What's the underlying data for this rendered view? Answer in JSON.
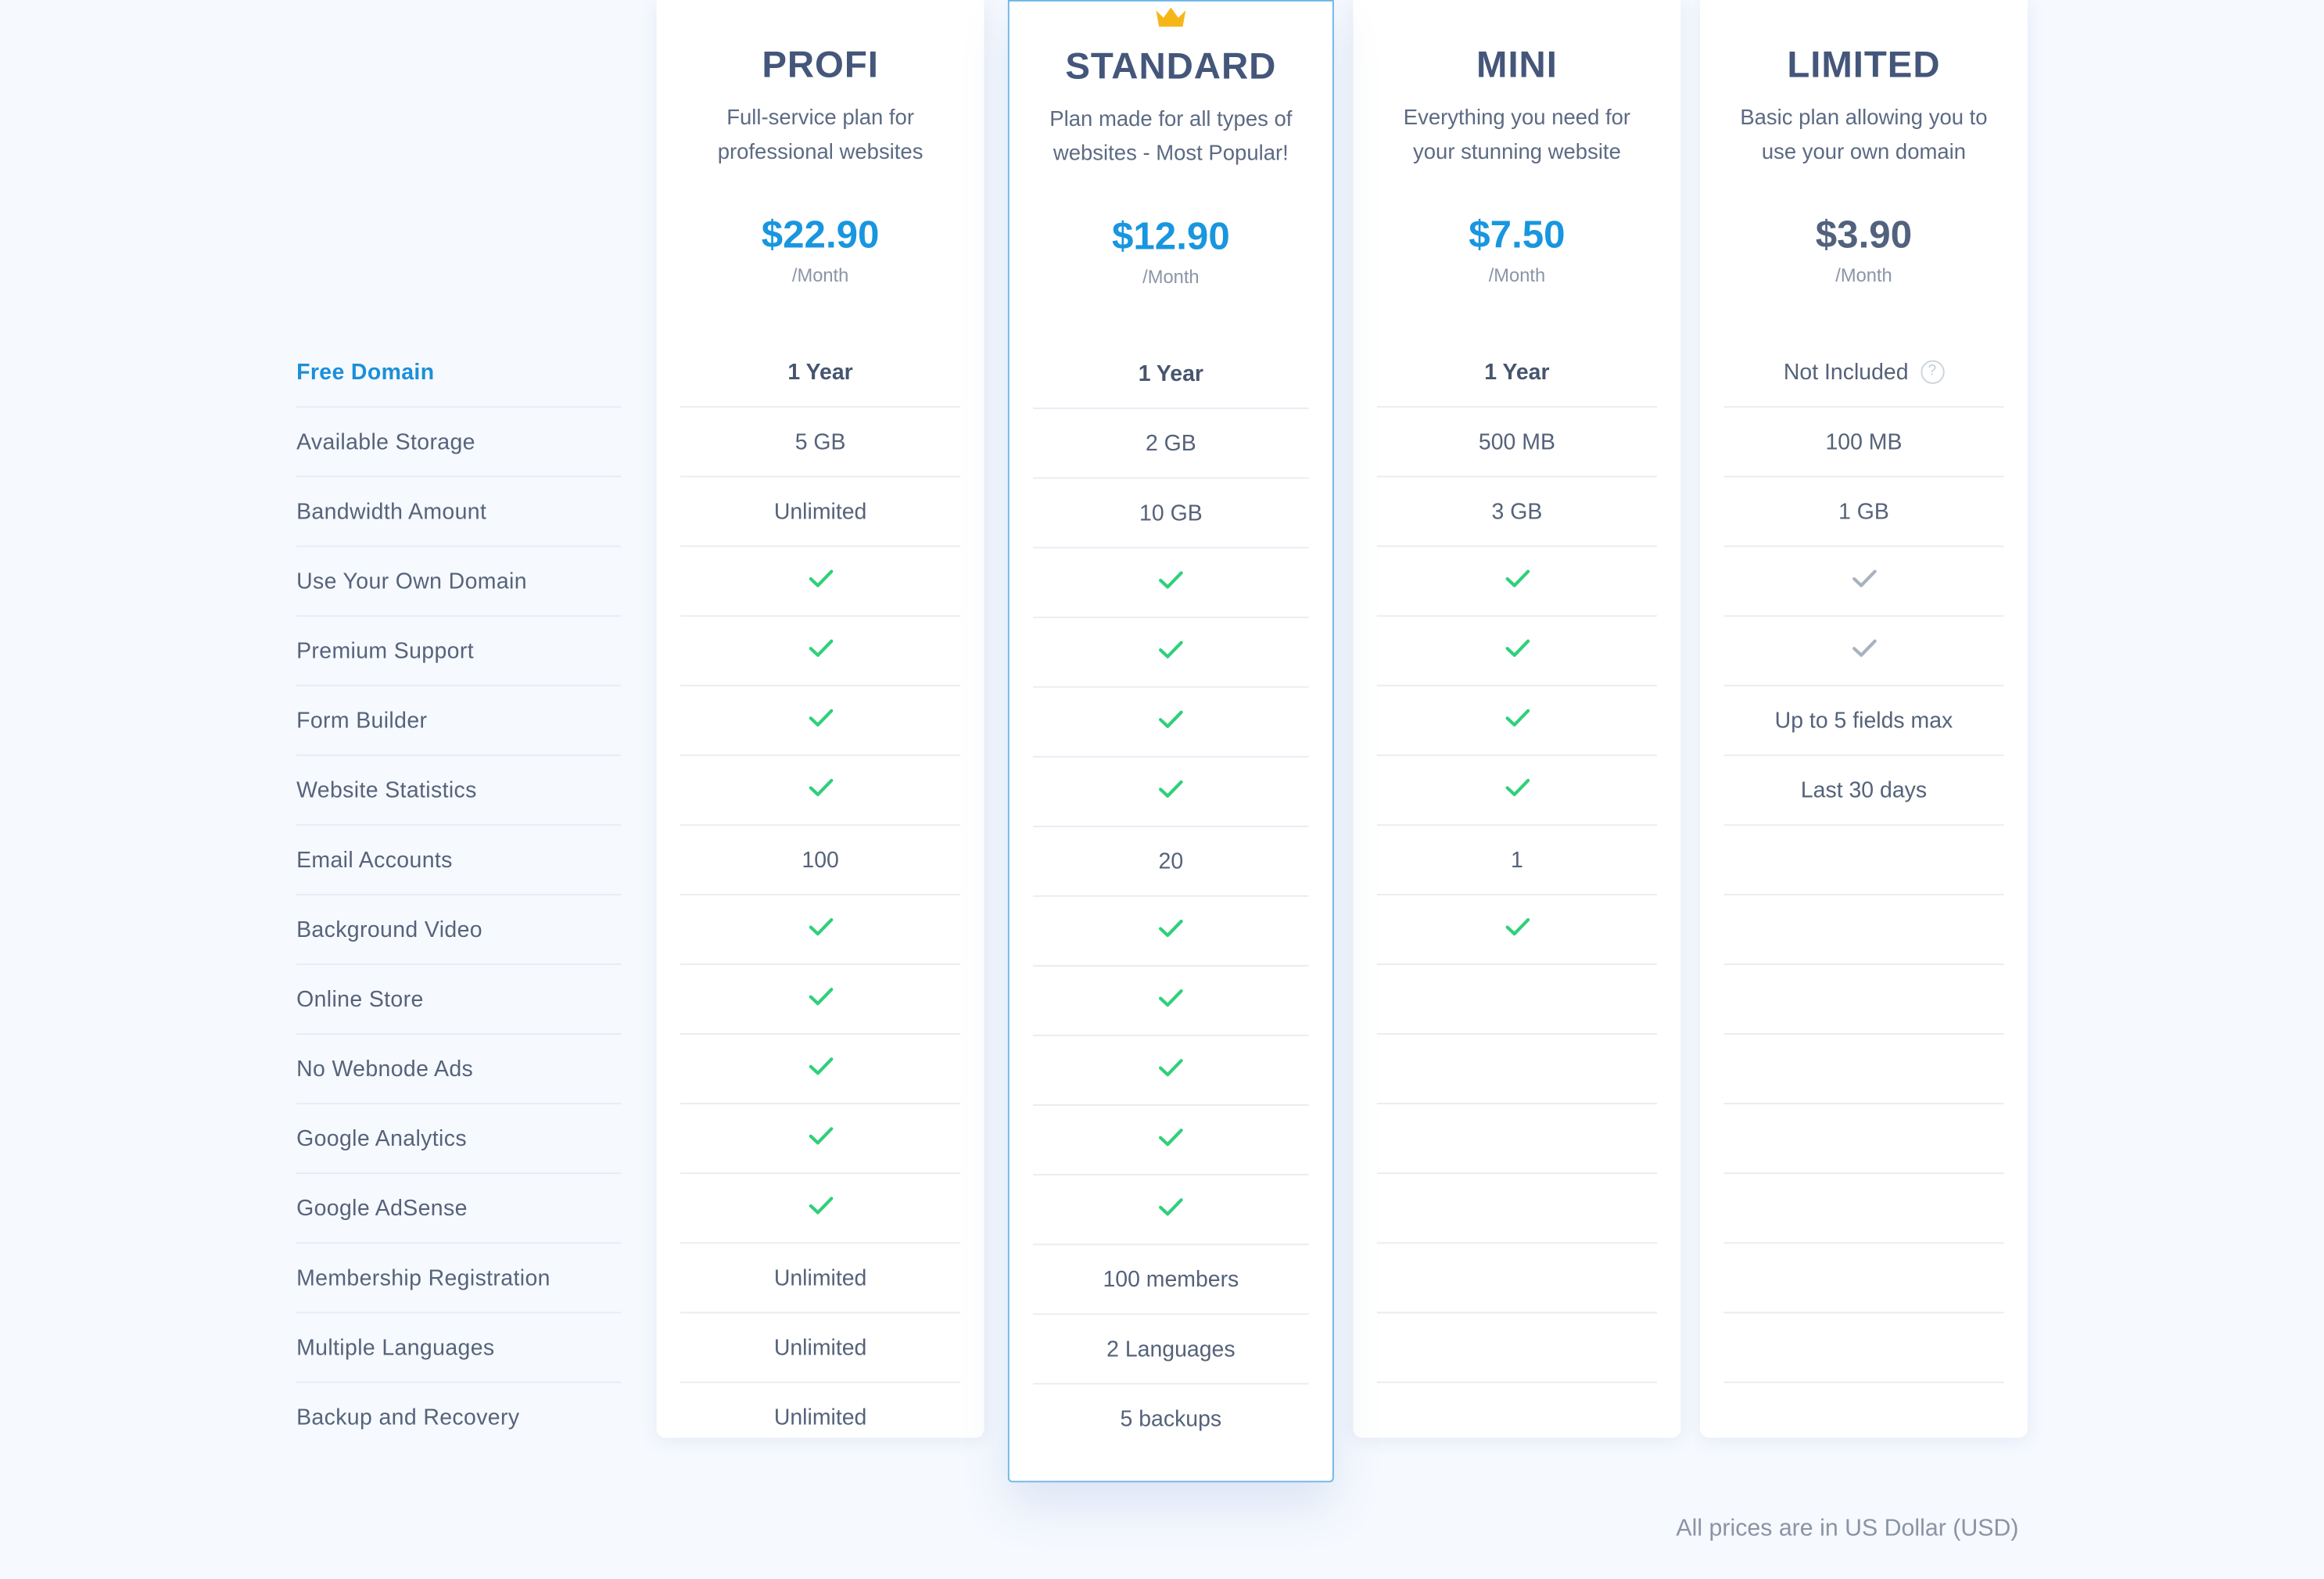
{
  "features": [
    {
      "label": "Free Domain",
      "highlight": true
    },
    {
      "label": "Available Storage"
    },
    {
      "label": "Bandwidth Amount"
    },
    {
      "label": "Use Your Own Domain"
    },
    {
      "label": "Premium Support"
    },
    {
      "label": "Form Builder"
    },
    {
      "label": "Website Statistics"
    },
    {
      "label": "Email Accounts"
    },
    {
      "label": "Background Video"
    },
    {
      "label": "Online Store"
    },
    {
      "label": "No Webnode Ads"
    },
    {
      "label": "Google Analytics"
    },
    {
      "label": "Google AdSense"
    },
    {
      "label": "Membership Registration"
    },
    {
      "label": "Multiple Languages"
    },
    {
      "label": "Backup and Recovery"
    }
  ],
  "plans": [
    {
      "name": "PROFI",
      "description": "Full-service plan for professional websites",
      "price": "$22.90",
      "period": "/Month",
      "featured": false,
      "price_muted": false,
      "values": [
        {
          "text": "1 Year",
          "bold": true
        },
        {
          "text": "5 GB"
        },
        {
          "text": "Unlimited"
        },
        {
          "check": "green"
        },
        {
          "check": "green"
        },
        {
          "check": "green"
        },
        {
          "check": "green"
        },
        {
          "text": "100"
        },
        {
          "check": "green"
        },
        {
          "check": "green"
        },
        {
          "check": "green"
        },
        {
          "check": "green"
        },
        {
          "check": "green"
        },
        {
          "text": "Unlimited"
        },
        {
          "text": "Unlimited"
        },
        {
          "text": "Unlimited"
        }
      ]
    },
    {
      "name": "STANDARD",
      "description": "Plan made for all types of websites - Most Popular!",
      "price": "$12.90",
      "period": "/Month",
      "featured": true,
      "price_muted": false,
      "badge_icon": "crown-icon",
      "values": [
        {
          "text": "1 Year",
          "bold": true
        },
        {
          "text": "2 GB"
        },
        {
          "text": "10 GB"
        },
        {
          "check": "green"
        },
        {
          "check": "green"
        },
        {
          "check": "green"
        },
        {
          "check": "green"
        },
        {
          "text": "20"
        },
        {
          "check": "green"
        },
        {
          "check": "green"
        },
        {
          "check": "green"
        },
        {
          "check": "green"
        },
        {
          "check": "green"
        },
        {
          "text": "100 members"
        },
        {
          "text": "2 Languages"
        },
        {
          "text": "5 backups"
        }
      ]
    },
    {
      "name": "MINI",
      "description": "Everything you need for your stunning website",
      "price": "$7.50",
      "period": "/Month",
      "featured": false,
      "price_muted": false,
      "values": [
        {
          "text": "1 Year",
          "bold": true
        },
        {
          "text": "500 MB"
        },
        {
          "text": "3 GB"
        },
        {
          "check": "green"
        },
        {
          "check": "green"
        },
        {
          "check": "green"
        },
        {
          "check": "green"
        },
        {
          "text": "1"
        },
        {
          "check": "green"
        },
        {},
        {},
        {},
        {},
        {},
        {},
        {}
      ]
    },
    {
      "name": "LIMITED",
      "description": "Basic plan allowing you to use your own domain",
      "price": "$3.90",
      "period": "/Month",
      "featured": false,
      "price_muted": true,
      "values": [
        {
          "text": "Not Included",
          "help_icon": true
        },
        {
          "text": "100 MB"
        },
        {
          "text": "1 GB"
        },
        {
          "check": "gray"
        },
        {
          "check": "gray"
        },
        {
          "text": "Up to 5 fields max"
        },
        {
          "text": "Last 30 days"
        },
        {},
        {},
        {},
        {},
        {},
        {},
        {},
        {},
        {}
      ]
    }
  ],
  "colors": {
    "check_green": "#2fd07a",
    "check_gray": "#a9b2bf",
    "price_blue": "#1896df",
    "price_muted": "#52617d",
    "crown": "#f7b618",
    "featured_border": "#6fb6e6",
    "highlight_label": "#1b8fd9"
  },
  "footnote": "All prices are in US Dollar (USD)"
}
